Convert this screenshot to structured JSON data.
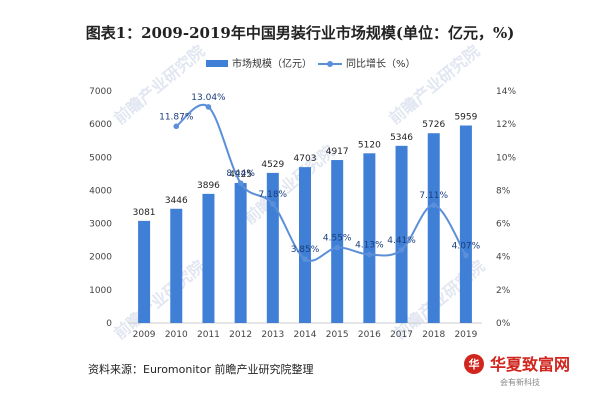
{
  "chart_data": {
    "type": "bar+line",
    "title": "图表1：2009-2019年中国男装行业市场规模(单位：亿元，%)",
    "categories": [
      "2009",
      "2010",
      "2011",
      "2012",
      "2013",
      "2014",
      "2015",
      "2016",
      "2017",
      "2018",
      "2019"
    ],
    "series": [
      {
        "name": "市场规模（亿元）",
        "type": "bar",
        "axis": "left",
        "values": [
          3081,
          3446,
          3896,
          4225,
          4529,
          4703,
          4917,
          5120,
          5346,
          5726,
          5959
        ],
        "labels": [
          "3081",
          "3446",
          "3896",
          "4225",
          "4529",
          "4703",
          "4917",
          "5120",
          "5346",
          "5726",
          "5959"
        ]
      },
      {
        "name": "同比增长（%）",
        "type": "line",
        "axis": "right",
        "values": [
          null,
          11.87,
          13.04,
          8.44,
          7.18,
          3.85,
          4.55,
          4.13,
          4.41,
          7.11,
          4.07
        ],
        "labels": [
          "",
          "11.87%",
          "13.04%",
          "8.44%",
          "7.18%",
          "3.85%",
          "4.55%",
          "4.13%",
          "4.41%",
          "7.11%",
          "4.07%"
        ]
      }
    ],
    "ylim_left": [
      0,
      7000
    ],
    "yticks_left": [
      "0",
      "1000",
      "2000",
      "3000",
      "4000",
      "5000",
      "6000",
      "7000"
    ],
    "ylim_right": [
      0,
      14
    ],
    "yticks_right": [
      "0%",
      "2%",
      "4%",
      "6%",
      "8%",
      "10%",
      "12%",
      "14%"
    ],
    "legend_position": "top-center"
  },
  "source": "资料来源：Euromonitor  前瞻产业研究院整理",
  "watermark": "前瞻产业研究院",
  "brand": {
    "name": "华夏致富网",
    "sub": "会有新科技"
  },
  "colors": {
    "bar": "#3f7fd6",
    "line": "#5b8fd9",
    "axis": "#cccccc"
  }
}
